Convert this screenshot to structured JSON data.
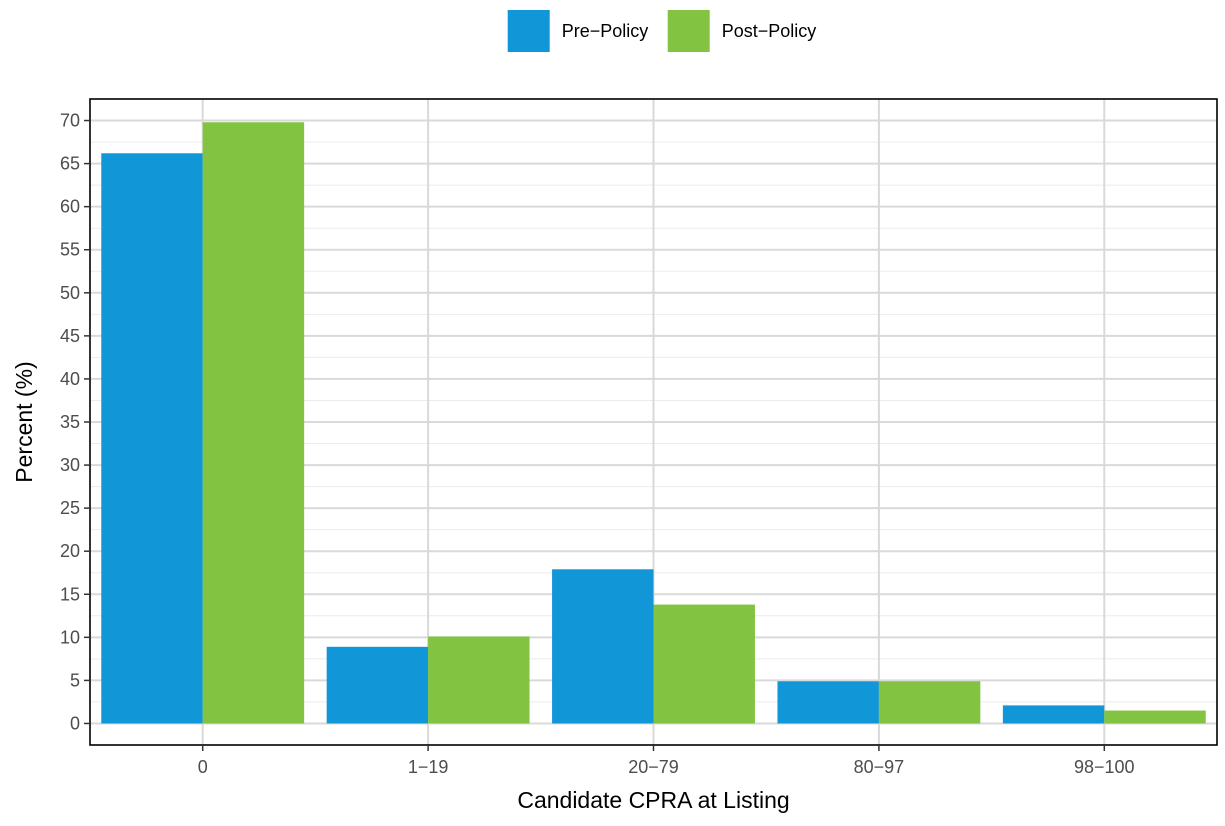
{
  "chart_data": {
    "type": "bar",
    "categories": [
      "0",
      "1−19",
      "20−79",
      "80−97",
      "98−100"
    ],
    "series": [
      {
        "name": "Pre−Policy",
        "values": [
          66.2,
          8.9,
          17.9,
          4.9,
          2.1
        ],
        "color": "#1197d8"
      },
      {
        "name": "Post−Policy",
        "values": [
          69.8,
          10.1,
          13.8,
          4.9,
          1.5
        ],
        "color": "#82c341"
      }
    ],
    "xlabel": "Candidate CPRA at Listing",
    "ylabel": "Percent (%)",
    "ylim": [
      -2.5,
      72.5
    ],
    "yticks": [
      0,
      5,
      10,
      15,
      20,
      25,
      30,
      35,
      40,
      45,
      50,
      55,
      60,
      65,
      70
    ],
    "grid": true,
    "legend_position": "top"
  }
}
